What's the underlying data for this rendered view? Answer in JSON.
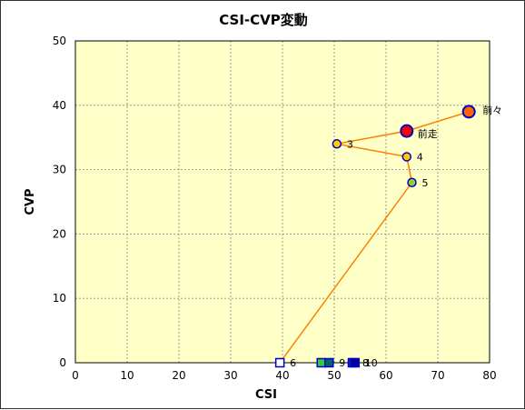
{
  "chart_data": {
    "type": "scatter",
    "title": "CSI-CVP変動",
    "xlabel": "CSI",
    "ylabel": "CVP",
    "xlim": [
      0,
      80
    ],
    "ylim": [
      0,
      50
    ],
    "xticks": [
      0,
      10,
      20,
      30,
      40,
      50,
      60,
      70,
      80
    ],
    "yticks": [
      0,
      10,
      20,
      30,
      40,
      50
    ],
    "grid": true,
    "plot_background": "#ffffc8",
    "line_color": "#ff7f00",
    "points": [
      {
        "label": "前々",
        "x": 76,
        "y": 39,
        "shape": "circle",
        "fill": "#ff6600",
        "stroke": "#0000cc",
        "size": "large"
      },
      {
        "label": "前走",
        "x": 64,
        "y": 36,
        "shape": "circle",
        "fill": "#ff0000",
        "stroke": "#0000cc",
        "size": "large"
      },
      {
        "label": "3",
        "x": 50.5,
        "y": 34,
        "shape": "circle",
        "fill": "#ffcc00",
        "stroke": "#0000cc",
        "size": "medium"
      },
      {
        "label": "4",
        "x": 64,
        "y": 32,
        "shape": "circle",
        "fill": "#ffcc00",
        "stroke": "#0000cc",
        "size": "medium"
      },
      {
        "label": "5",
        "x": 65,
        "y": 28,
        "shape": "circle",
        "fill": "#99cc33",
        "stroke": "#0000cc",
        "size": "medium"
      },
      {
        "label": "6",
        "x": 39.5,
        "y": 0,
        "shape": "square",
        "fill": "#ffffff",
        "stroke": "#0000cc",
        "size": "medium"
      },
      {
        "label": "",
        "x": 47.5,
        "y": 0,
        "shape": "square",
        "fill": "#33cc33",
        "stroke": "#0000cc",
        "size": "medium"
      },
      {
        "label": "9",
        "x": 49,
        "y": 0,
        "shape": "square",
        "fill": "#006666",
        "stroke": "#0000cc",
        "size": "medium"
      },
      {
        "label": "8",
        "x": 53.5,
        "y": 0,
        "shape": "square",
        "fill": "#003399",
        "stroke": "#0000cc",
        "size": "medium"
      },
      {
        "label": "10",
        "x": 54,
        "y": 0,
        "shape": "square",
        "fill": "#000099",
        "stroke": "#0000cc",
        "size": "medium"
      }
    ],
    "line_order": [
      "前々",
      "前走",
      "3",
      "4",
      "5",
      "6"
    ]
  }
}
